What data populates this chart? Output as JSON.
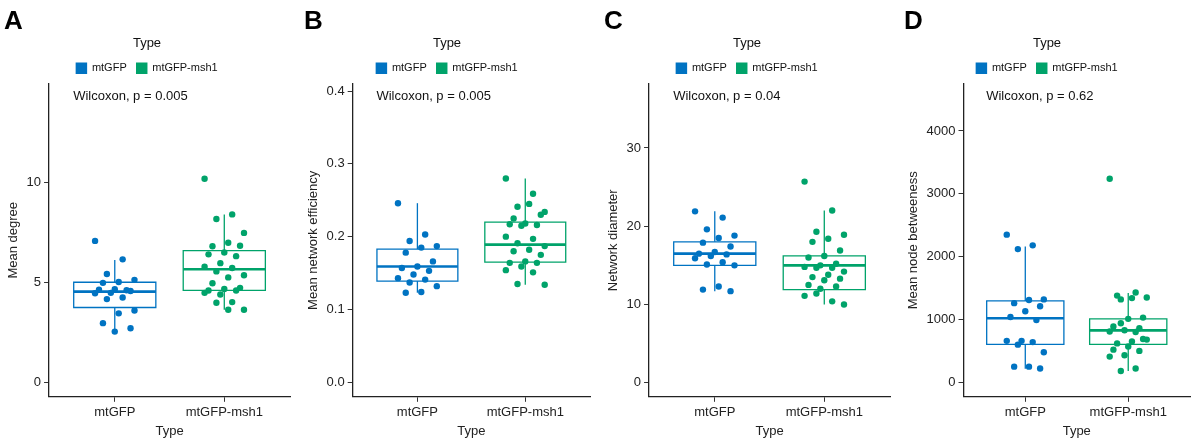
{
  "chart_data": [
    {
      "type": "box",
      "title": "A",
      "categories": [
        "mtGFP",
        "mtGFP-msh1"
      ],
      "xlabel": "Type",
      "ylabel": "Mean degree",
      "legend_title": "Type",
      "legend": "top",
      "grid": false,
      "marker": "circle",
      "ylim": [
        -0.7,
        14.9
      ],
      "yticks": [
        0,
        5,
        10
      ],
      "annotations": [
        "Wilcoxon, p = 0.005"
      ],
      "series": [
        {
          "name": "mtGFP",
          "color": "#0073c2",
          "boxes": [
            {
              "low": 2.6,
              "q1": 3.75,
              "median": 4.54,
              "q3": 5.01,
              "high": 6.12
            },
            null
          ]
        },
        {
          "name": "mtGFP-msh1",
          "color": "#00a36a",
          "boxes": [
            null,
            {
              "low": 3.64,
              "q1": 4.6,
              "median": 5.66,
              "q3": 6.59,
              "high": 8.39
            }
          ]
        },
        {
          "type": "scatter",
          "color": "#0073c2",
          "x": [
            "mtGFP",
            "mtGFP",
            "mtGFP",
            "mtGFP",
            "mtGFP",
            "mtGFP",
            "mtGFP",
            "mtGFP",
            "mtGFP",
            "mtGFP",
            "mtGFP",
            "mtGFP",
            "mtGFP",
            "mtGFP",
            "mtGFP",
            "mtGFP",
            "mtGFP",
            "mtGFP",
            "mtGFP"
          ],
          "values": [
            7.07,
            6.15,
            5.42,
            5.13,
            5.02,
            4.98,
            4.57,
            4.66,
            4.64,
            4.61,
            4.48,
            4.46,
            4.25,
            4.17,
            3.6,
            3.46,
            2.97,
            2.72,
            2.55
          ]
        },
        {
          "type": "scatter",
          "color": "#00a36a",
          "x": [
            "mtGFP-msh1",
            "mtGFP-msh1",
            "mtGFP-msh1",
            "mtGFP-msh1",
            "mtGFP-msh1",
            "mtGFP-msh1",
            "mtGFP-msh1",
            "mtGFP-msh1",
            "mtGFP-msh1",
            "mtGFP-msh1",
            "mtGFP-msh1",
            "mtGFP-msh1",
            "mtGFP-msh1",
            "mtGFP-msh1",
            "mtGFP-msh1",
            "mtGFP-msh1",
            "mtGFP-msh1",
            "mtGFP-msh1",
            "mtGFP-msh1",
            "mtGFP-msh1",
            "mtGFP-msh1",
            "mtGFP-msh1",
            "mtGFP-msh1",
            "mtGFP-msh1",
            "mtGFP-msh1",
            "mtGFP-msh1",
            "mtGFP-msh1"
          ],
          "values": [
            10.17,
            8.39,
            8.16,
            7.47,
            6.98,
            6.8,
            6.83,
            6.49,
            6.4,
            6.31,
            5.96,
            5.78,
            5.72,
            5.55,
            5.36,
            5.25,
            4.96,
            4.73,
            4.67,
            4.6,
            4.6,
            4.4,
            4.48,
            4.02,
            3.99,
            3.64,
            3.64
          ]
        }
      ]
    },
    {
      "type": "box",
      "title": "B",
      "categories": [
        "mtGFP",
        "mtGFP-msh1"
      ],
      "xlabel": "Type",
      "ylabel": "Mean network efficiency",
      "legend_title": "Type",
      "legend": "top",
      "grid": false,
      "marker": "circle",
      "ylim": [
        -0.02,
        0.41
      ],
      "yticks": [
        {
          "value": 0,
          "label": "0.0"
        },
        {
          "value": 0.1,
          "label": "0.1"
        },
        {
          "value": 0.2,
          "label": "0.2"
        },
        {
          "value": 0.3,
          "label": "0.3"
        },
        {
          "value": 0.4,
          "label": "0.4"
        }
      ],
      "annotations": [
        "Wilcoxon, p = 0.005"
      ],
      "series": [
        {
          "name": "mtGFP",
          "color": "#0073c2",
          "boxes": [
            {
              "low": 0.123,
              "q1": 0.139,
              "median": 0.159,
              "q3": 0.183,
              "high": 0.246
            },
            null
          ]
        },
        {
          "name": "mtGFP-msh1",
          "color": "#00a36a",
          "boxes": [
            null,
            {
              "low": 0.134,
              "q1": 0.165,
              "median": 0.189,
              "q3": 0.22,
              "high": 0.28
            }
          ]
        },
        {
          "type": "scatter",
          "color": "#0073c2",
          "x": [
            "mtGFP",
            "mtGFP",
            "mtGFP",
            "mtGFP",
            "mtGFP",
            "mtGFP",
            "mtGFP",
            "mtGFP",
            "mtGFP",
            "mtGFP",
            "mtGFP",
            "mtGFP",
            "mtGFP",
            "mtGFP",
            "mtGFP",
            "mtGFP",
            "mtGFP"
          ],
          "values": [
            0.246,
            0.203,
            0.194,
            0.187,
            0.185,
            0.178,
            0.166,
            0.159,
            0.157,
            0.153,
            0.148,
            0.143,
            0.141,
            0.137,
            0.132,
            0.124,
            0.123
          ]
        },
        {
          "type": "scatter",
          "color": "#00a36a",
          "x": [
            "mtGFP-msh1",
            "mtGFP-msh1",
            "mtGFP-msh1",
            "mtGFP-msh1",
            "mtGFP-msh1",
            "mtGFP-msh1",
            "mtGFP-msh1",
            "mtGFP-msh1",
            "mtGFP-msh1",
            "mtGFP-msh1",
            "mtGFP-msh1",
            "mtGFP-msh1",
            "mtGFP-msh1",
            "mtGFP-msh1",
            "mtGFP-msh1",
            "mtGFP-msh1",
            "mtGFP-msh1",
            "mtGFP-msh1",
            "mtGFP-msh1",
            "mtGFP-msh1",
            "mtGFP-msh1",
            "mtGFP-msh1",
            "mtGFP-msh1",
            "mtGFP-msh1",
            "mtGFP-msh1",
            "mtGFP-msh1"
          ],
          "values": [
            0.28,
            0.259,
            0.241,
            0.234,
            0.245,
            0.225,
            0.23,
            0.218,
            0.217,
            0.216,
            0.215,
            0.2,
            0.197,
            0.191,
            0.187,
            0.182,
            0.18,
            0.175,
            0.166,
            0.164,
            0.164,
            0.159,
            0.154,
            0.151,
            0.135,
            0.134
          ]
        }
      ]
    },
    {
      "type": "box",
      "title": "C",
      "categories": [
        "mtGFP",
        "mtGFP-msh1"
      ],
      "xlabel": "Type",
      "ylabel": "Network diameter",
      "legend_title": "Type",
      "legend": "top",
      "grid": false,
      "marker": "circle",
      "ylim": [
        -1.8,
        38.2
      ],
      "yticks": [
        0,
        10,
        20,
        30
      ],
      "annotations": [
        "Wilcoxon, p = 0.04"
      ],
      "series": [
        {
          "name": "mtGFP",
          "color": "#0073c2",
          "boxes": [
            {
              "low": 11.7,
              "q1": 15,
              "median": 16.5,
              "q3": 18,
              "high": 21.9
            },
            null
          ]
        },
        {
          "name": "mtGFP-msh1",
          "color": "#00a36a",
          "boxes": [
            null,
            {
              "low": 10,
              "q1": 11.9,
              "median": 15,
              "q3": 16.2,
              "high": 22
            }
          ]
        },
        {
          "type": "scatter",
          "color": "#0073c2",
          "x": [
            "mtGFP",
            "mtGFP",
            "mtGFP",
            "mtGFP",
            "mtGFP",
            "mtGFP",
            "mtGFP",
            "mtGFP",
            "mtGFP",
            "mtGFP",
            "mtGFP",
            "mtGFP",
            "mtGFP",
            "mtGFP",
            "mtGFP",
            "mtGFP",
            "mtGFP",
            "mtGFP"
          ],
          "values": [
            21.9,
            21.1,
            19.6,
            18.8,
            18.5,
            17.9,
            17.4,
            16.7,
            16.5,
            16.4,
            16.2,
            15.9,
            15.4,
            15.1,
            15,
            12.3,
            11.9,
            11.7
          ]
        },
        {
          "type": "scatter",
          "color": "#00a36a",
          "x": [
            "mtGFP-msh1",
            "mtGFP-msh1",
            "mtGFP-msh1",
            "mtGFP-msh1",
            "mtGFP-msh1",
            "mtGFP-msh1",
            "mtGFP-msh1",
            "mtGFP-msh1",
            "mtGFP-msh1",
            "mtGFP-msh1",
            "mtGFP-msh1",
            "mtGFP-msh1",
            "mtGFP-msh1",
            "mtGFP-msh1",
            "mtGFP-msh1",
            "mtGFP-msh1",
            "mtGFP-msh1",
            "mtGFP-msh1",
            "mtGFP-msh1",
            "mtGFP-msh1",
            "mtGFP-msh1",
            "mtGFP-msh1",
            "mtGFP-msh1",
            "mtGFP-msh1",
            "mtGFP-msh1",
            "mtGFP-msh1"
          ],
          "values": [
            25.7,
            22,
            19.3,
            18.9,
            18.4,
            18,
            16.9,
            16.2,
            16,
            15.2,
            15,
            14.8,
            14.7,
            14.7,
            14.2,
            13.8,
            13.5,
            13.3,
            13.1,
            12.5,
            12.3,
            12,
            11.1,
            10.4,
            11.4,
            10
          ]
        }
      ]
    },
    {
      "type": "box",
      "title": "D",
      "categories": [
        "mtGFP",
        "mtGFP-msh1"
      ],
      "xlabel": "Type",
      "ylabel": "Mean node betweeness",
      "legend_title": "Type",
      "legend": "top",
      "grid": false,
      "marker": "circle",
      "ylim": [
        -230,
        4750
      ],
      "yticks": [
        0,
        1000,
        2000,
        3000,
        4000
      ],
      "annotations": [
        "Wilcoxon, p = 0.62"
      ],
      "series": [
        {
          "name": "mtGFP",
          "color": "#0073c2",
          "boxes": [
            {
              "low": 218,
              "q1": 604,
              "median": 1020,
              "q3": 1296,
              "high": 2160
            },
            null
          ]
        },
        {
          "name": "mtGFP-msh1",
          "color": "#00a36a",
          "boxes": [
            null,
            {
              "low": 180,
              "q1": 604,
              "median": 827,
              "q3": 1011,
              "high": 1420
            }
          ]
        },
        {
          "type": "scatter",
          "color": "#0073c2",
          "x": [
            "mtGFP",
            "mtGFP",
            "mtGFP",
            "mtGFP",
            "mtGFP",
            "mtGFP",
            "mtGFP",
            "mtGFP",
            "mtGFP",
            "mtGFP",
            "mtGFP",
            "mtGFP",
            "mtGFP",
            "mtGFP",
            "mtGFP",
            "mtGFP",
            "mtGFP",
            "mtGFP"
          ],
          "values": [
            2350,
            2180,
            2120,
            1320,
            1310,
            1260,
            1210,
            1130,
            1040,
            990,
            660,
            660,
            640,
            600,
            480,
            250,
            250,
            220
          ]
        },
        {
          "type": "scatter",
          "color": "#00a36a",
          "x": [
            "mtGFP-msh1",
            "mtGFP-msh1",
            "mtGFP-msh1",
            "mtGFP-msh1",
            "mtGFP-msh1",
            "mtGFP-msh1",
            "mtGFP-msh1",
            "mtGFP-msh1",
            "mtGFP-msh1",
            "mtGFP-msh1",
            "mtGFP-msh1",
            "mtGFP-msh1",
            "mtGFP-msh1",
            "mtGFP-msh1",
            "mtGFP-msh1",
            "mtGFP-msh1",
            "mtGFP-msh1",
            "mtGFP-msh1",
            "mtGFP-msh1",
            "mtGFP-msh1",
            "mtGFP-msh1",
            "mtGFP-msh1",
            "mtGFP-msh1",
            "mtGFP-msh1",
            "mtGFP-msh1"
          ],
          "values": [
            3240,
            1430,
            1320,
            1350,
            1340,
            1380,
            1030,
            1010,
            890,
            860,
            830,
            810,
            800,
            940,
            680,
            650,
            620,
            690,
            570,
            520,
            500,
            430,
            410,
            220,
            180
          ]
        }
      ]
    }
  ]
}
